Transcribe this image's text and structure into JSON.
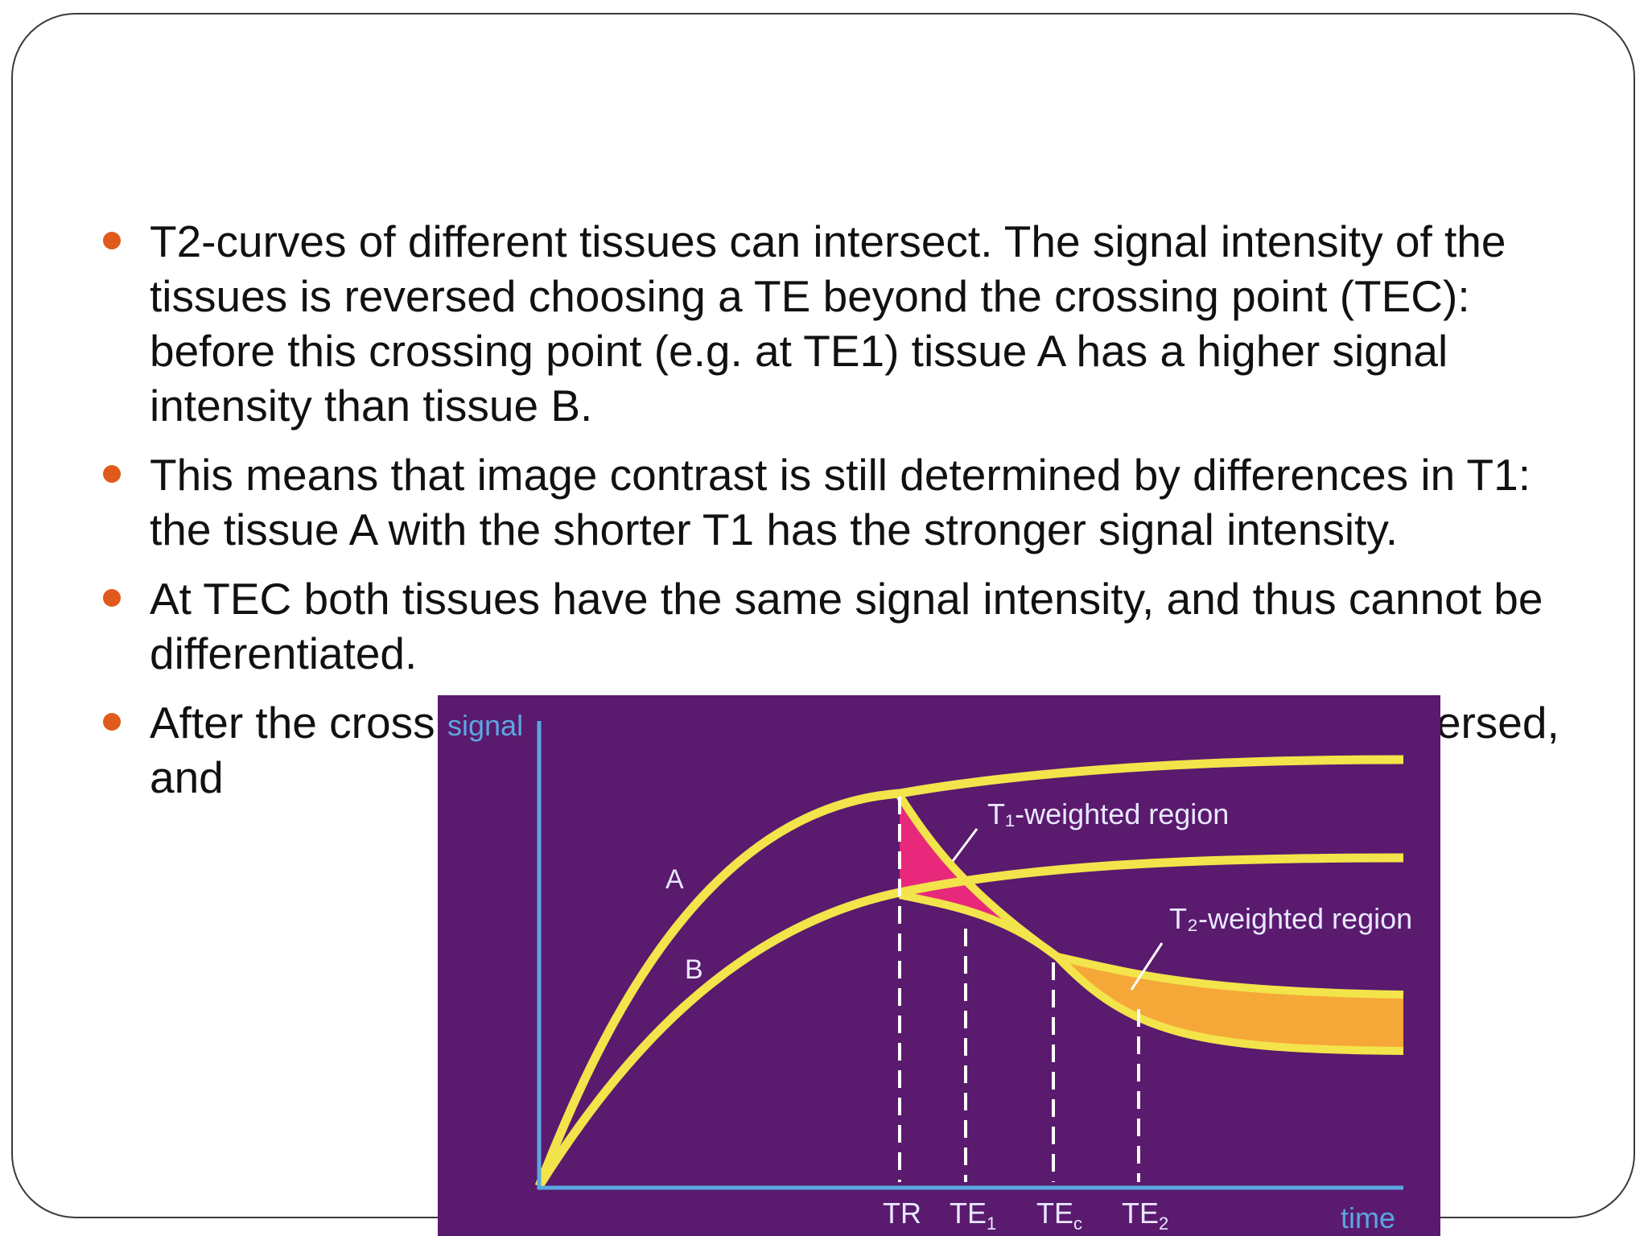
{
  "bullets": [
    "T2-curves of different tissues can intersect. The signal intensity of the tissues is reversed choosing a TE beyond the crossing point (TEC): before this crossing point (e.g. at TE1) tissue A has a higher signal intensity than tissue B.",
    "This means that image contrast is still determined by differences in T1: the tissue A with the shorter T1 has the stronger signal intensity.",
    "At TEC both tissues have the same signal intensity, and thus cannot be differentiated.",
    "After the crossing point the signal intensities of the tissues are reversed, and"
  ],
  "figure": {
    "y_axis_label": "signal",
    "x_axis_label": "time",
    "curve_a_label": "A",
    "curve_b_label": "B",
    "t1_region_label": "T₁-weighted region",
    "t2_region_label": "T₂-weighted region",
    "ticks": {
      "tr": "TR",
      "te1_main": "TE",
      "te1_sub": "1",
      "tec_main": "TE",
      "tec_sub": "c",
      "te2_main": "TE",
      "te2_sub": "2"
    },
    "colors": {
      "background": "#5a1a6e",
      "curve": "#f2e44a",
      "t1_region": "#e8287a",
      "t2_region": "#f5a838",
      "axis": "#5aa7e0",
      "text": "#e8e8ff"
    }
  }
}
